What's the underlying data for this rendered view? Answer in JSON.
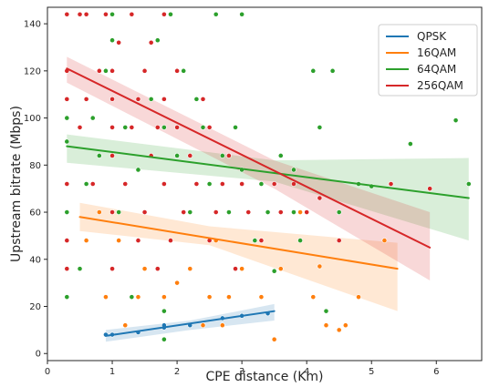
{
  "chart_data": {
    "type": "scatter",
    "xlabel": "CPE distance (Km)",
    "ylabel": "Upstream bitrate (Mbps)",
    "xlim": [
      0,
      6.7
    ],
    "ylim": [
      -3,
      147
    ],
    "xticks": [
      "0",
      "1",
      "2",
      "3",
      "4",
      "5",
      "6"
    ],
    "xtick_values": [
      0,
      1,
      2,
      3,
      4,
      5,
      6
    ],
    "yticks": [
      "0",
      "20",
      "40",
      "60",
      "80",
      "100",
      "120",
      "140"
    ],
    "ytick_values": [
      0,
      20,
      40,
      60,
      80,
      100,
      120,
      140
    ],
    "grid": false,
    "legend_position": "top-right",
    "series": [
      {
        "name": "QPSK",
        "color": "#1f77b4",
        "points": [
          [
            0.9,
            8
          ],
          [
            1.0,
            8
          ],
          [
            1.4,
            9
          ],
          [
            1.8,
            11
          ],
          [
            1.8,
            12
          ],
          [
            2.2,
            12
          ],
          [
            2.7,
            15
          ],
          [
            3.0,
            16
          ],
          [
            3.4,
            17
          ]
        ],
        "regression": [
          [
            0.9,
            7.5
          ],
          [
            3.5,
            18
          ]
        ],
        "ci_upper": [
          [
            0.9,
            10
          ],
          [
            2.2,
            14
          ],
          [
            3.5,
            21
          ]
        ],
        "ci_lower": [
          [
            0.9,
            5
          ],
          [
            2.2,
            10
          ],
          [
            3.5,
            14
          ]
        ]
      },
      {
        "name": "16QAM",
        "color": "#ff7f0e",
        "points": [
          [
            0.5,
            36
          ],
          [
            0.6,
            48
          ],
          [
            0.9,
            24
          ],
          [
            1.0,
            36
          ],
          [
            1.2,
            12
          ],
          [
            1.4,
            24
          ],
          [
            1.4,
            48
          ],
          [
            1.5,
            60
          ],
          [
            1.5,
            36
          ],
          [
            1.8,
            24
          ],
          [
            1.9,
            48
          ],
          [
            2.0,
            30
          ],
          [
            2.2,
            36
          ],
          [
            2.4,
            12
          ],
          [
            2.5,
            24
          ],
          [
            2.6,
            48
          ],
          [
            2.8,
            24
          ],
          [
            3.0,
            36
          ],
          [
            3.2,
            48
          ],
          [
            3.5,
            6
          ],
          [
            3.6,
            36
          ],
          [
            3.9,
            60
          ],
          [
            4.1,
            24
          ],
          [
            4.2,
            37
          ],
          [
            4.3,
            12
          ],
          [
            4.5,
            10
          ],
          [
            4.8,
            24
          ],
          [
            5.2,
            48
          ],
          [
            5.3,
            72
          ],
          [
            0.8,
            60
          ],
          [
            1.1,
            48
          ],
          [
            1.7,
            36
          ],
          [
            2.1,
            60
          ],
          [
            2.7,
            12
          ],
          [
            3.3,
            24
          ],
          [
            4.6,
            12
          ]
        ],
        "regression": [
          [
            0.5,
            58
          ],
          [
            5.4,
            36
          ]
        ],
        "ci_upper": [
          [
            0.5,
            64
          ],
          [
            2.5,
            54
          ],
          [
            5.4,
            47
          ]
        ],
        "ci_lower": [
          [
            0.5,
            52
          ],
          [
            2.5,
            46
          ],
          [
            5.4,
            18
          ]
        ]
      },
      {
        "name": "64QAM",
        "color": "#2ca02c",
        "points": [
          [
            0.3,
            24
          ],
          [
            0.3,
            48
          ],
          [
            0.3,
            60
          ],
          [
            0.3,
            90
          ],
          [
            0.3,
            100
          ],
          [
            0.5,
            36
          ],
          [
            0.6,
            72
          ],
          [
            0.7,
            100
          ],
          [
            0.8,
            84
          ],
          [
            0.9,
            120
          ],
          [
            1.0,
            108
          ],
          [
            1.0,
            133
          ],
          [
            1.0,
            144
          ],
          [
            1.1,
            60
          ],
          [
            1.2,
            96
          ],
          [
            1.3,
            24
          ],
          [
            1.4,
            78
          ],
          [
            1.5,
            120
          ],
          [
            1.6,
            108
          ],
          [
            1.7,
            133
          ],
          [
            1.8,
            6
          ],
          [
            1.8,
            18
          ],
          [
            1.8,
            72
          ],
          [
            1.8,
            96
          ],
          [
            1.9,
            144
          ],
          [
            2.0,
            84
          ],
          [
            2.1,
            120
          ],
          [
            2.2,
            60
          ],
          [
            2.3,
            108
          ],
          [
            2.4,
            96
          ],
          [
            2.5,
            72
          ],
          [
            2.6,
            144
          ],
          [
            2.7,
            84
          ],
          [
            2.8,
            60
          ],
          [
            2.9,
            96
          ],
          [
            3.0,
            78
          ],
          [
            3.0,
            144
          ],
          [
            3.2,
            48
          ],
          [
            3.3,
            72
          ],
          [
            3.4,
            60
          ],
          [
            3.5,
            35
          ],
          [
            3.6,
            84
          ],
          [
            3.8,
            78
          ],
          [
            3.9,
            48
          ],
          [
            4.1,
            120
          ],
          [
            4.2,
            96
          ],
          [
            4.4,
            120
          ],
          [
            4.5,
            60
          ],
          [
            4.8,
            72
          ],
          [
            5.0,
            71
          ],
          [
            5.3,
            72
          ],
          [
            5.6,
            89
          ],
          [
            6.3,
            99
          ],
          [
            6.5,
            72
          ],
          [
            3.8,
            60
          ],
          [
            4.3,
            18
          ]
        ],
        "regression": [
          [
            0.3,
            88
          ],
          [
            6.5,
            66
          ]
        ],
        "ci_upper": [
          [
            0.3,
            93
          ],
          [
            3.5,
            82
          ],
          [
            6.5,
            83
          ]
        ],
        "ci_lower": [
          [
            0.3,
            81
          ],
          [
            3.5,
            73
          ],
          [
            6.5,
            48
          ]
        ]
      },
      {
        "name": "256QAM",
        "color": "#d62728",
        "points": [
          [
            0.3,
            36
          ],
          [
            0.3,
            48
          ],
          [
            0.3,
            72
          ],
          [
            0.3,
            108
          ],
          [
            0.3,
            120
          ],
          [
            0.3,
            144
          ],
          [
            0.5,
            96
          ],
          [
            0.5,
            144
          ],
          [
            0.6,
            108
          ],
          [
            0.6,
            144
          ],
          [
            0.7,
            72
          ],
          [
            0.8,
            120
          ],
          [
            0.9,
            144
          ],
          [
            1.0,
            36
          ],
          [
            1.0,
            60
          ],
          [
            1.0,
            84
          ],
          [
            1.0,
            96
          ],
          [
            1.0,
            108
          ],
          [
            1.0,
            120
          ],
          [
            1.1,
            132
          ],
          [
            1.2,
            72
          ],
          [
            1.3,
            96
          ],
          [
            1.3,
            144
          ],
          [
            1.4,
            48
          ],
          [
            1.4,
            108
          ],
          [
            1.5,
            60
          ],
          [
            1.5,
            120
          ],
          [
            1.6,
            84
          ],
          [
            1.6,
            132
          ],
          [
            1.7,
            36
          ],
          [
            1.7,
            96
          ],
          [
            1.8,
            72
          ],
          [
            1.8,
            108
          ],
          [
            1.8,
            144
          ],
          [
            1.9,
            48
          ],
          [
            2.0,
            96
          ],
          [
            2.0,
            120
          ],
          [
            2.1,
            60
          ],
          [
            2.2,
            84
          ],
          [
            2.3,
            72
          ],
          [
            2.4,
            108
          ],
          [
            2.5,
            48
          ],
          [
            2.5,
            96
          ],
          [
            2.6,
            60
          ],
          [
            2.7,
            72
          ],
          [
            2.8,
            84
          ],
          [
            2.9,
            36
          ],
          [
            3.0,
            72
          ],
          [
            3.1,
            60
          ],
          [
            3.3,
            48
          ],
          [
            3.5,
            72
          ],
          [
            3.6,
            60
          ],
          [
            3.8,
            72
          ],
          [
            4.0,
            60
          ],
          [
            4.2,
            66
          ],
          [
            4.5,
            48
          ],
          [
            5.3,
            72
          ],
          [
            5.9,
            70
          ]
        ],
        "regression": [
          [
            0.3,
            121
          ],
          [
            5.9,
            45
          ]
        ],
        "ci_upper": [
          [
            0.3,
            126
          ],
          [
            3.5,
            82
          ],
          [
            5.9,
            60
          ]
        ],
        "ci_lower": [
          [
            0.3,
            115
          ],
          [
            3.5,
            70
          ],
          [
            5.9,
            31
          ]
        ]
      }
    ]
  }
}
